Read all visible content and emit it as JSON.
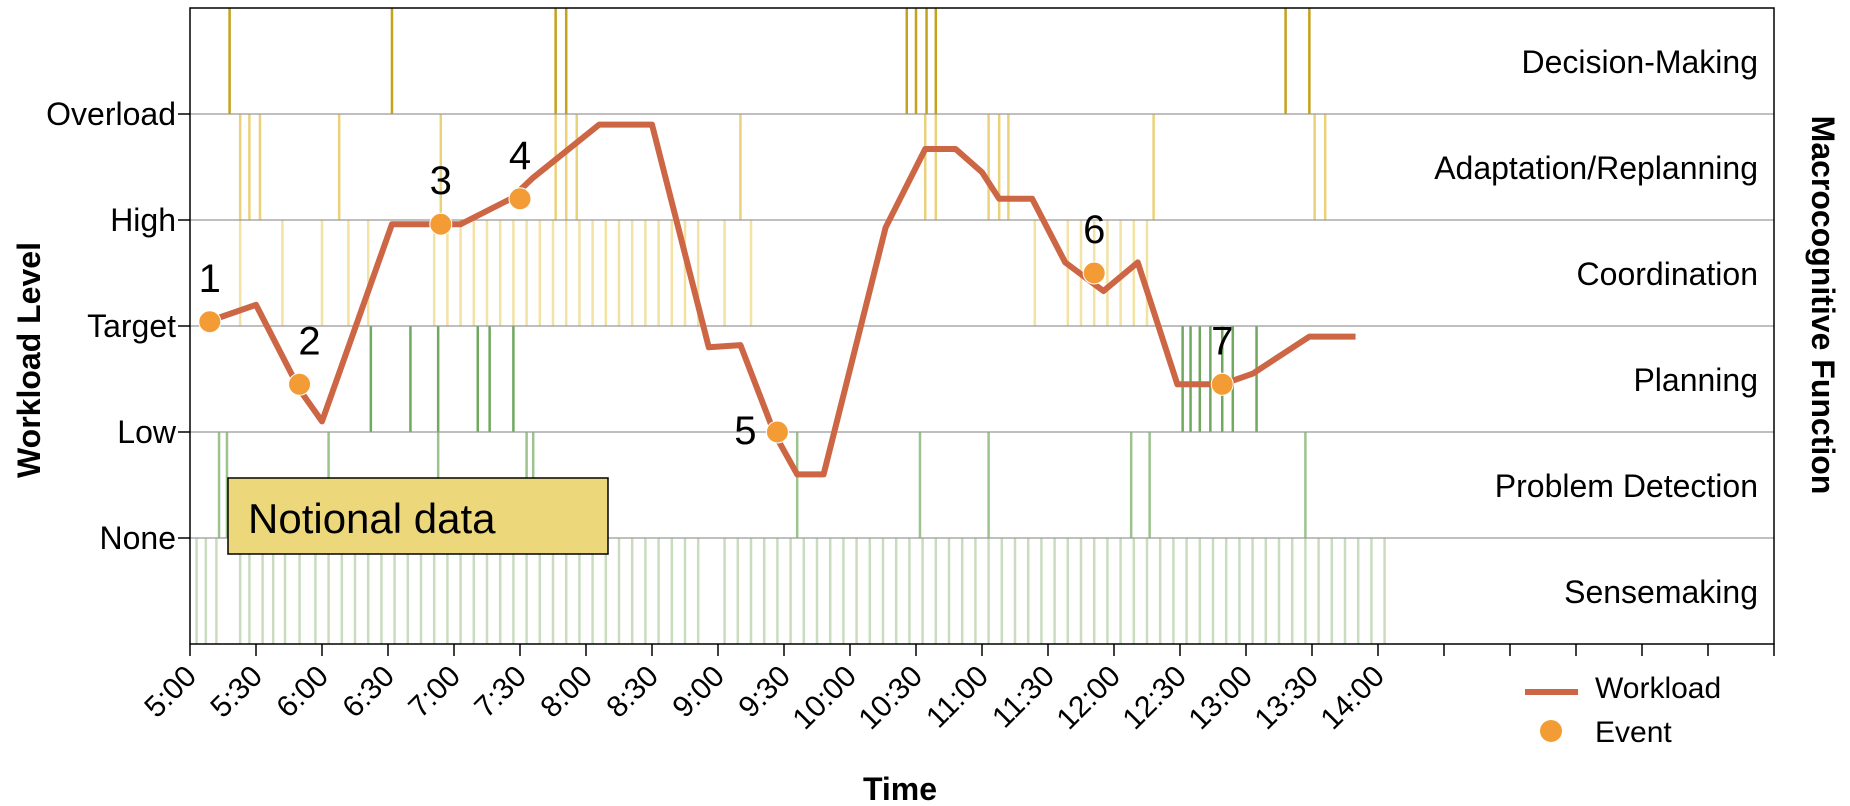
{
  "chart_data": {
    "type": "line",
    "xlabel": "Time",
    "ylabel": "Workload Level",
    "y2label": "Macrocognitive Function",
    "annotation": "Notional data",
    "x_ticks": [
      "5:00",
      "5:30",
      "6:00",
      "6:30",
      "7:00",
      "7:30",
      "8:00",
      "8:30",
      "9:00",
      "9:30",
      "10:00",
      "10:30",
      "11:00",
      "11:30",
      "12:00",
      "12:30",
      "13:00",
      "13:30",
      "14:00"
    ],
    "xlim": [
      5.0,
      17.0
    ],
    "y_ticks": [
      "None",
      "Low",
      "Target",
      "High",
      "Overload"
    ],
    "ylim": [
      -1,
      5
    ],
    "functions": [
      "Sensemaking",
      "Problem Detection",
      "Planning",
      "Coordination",
      "Adaptation/Replanning",
      "Decision-Making"
    ],
    "function_colors": [
      "#c9dcc0",
      "#9cc38e",
      "#6fa85e",
      "#f3e2a4",
      "#ead27a",
      "#c4a21c"
    ],
    "workload": {
      "name": "Workload",
      "color": "#cc6645",
      "points": [
        [
          5.13,
          2.04
        ],
        [
          5.5,
          2.2
        ],
        [
          5.83,
          1.4
        ],
        [
          6.0,
          1.1
        ],
        [
          6.53,
          2.96
        ],
        [
          6.82,
          2.96
        ],
        [
          7.05,
          2.96
        ],
        [
          7.43,
          3.2
        ],
        [
          7.6,
          3.4
        ],
        [
          8.1,
          3.9
        ],
        [
          8.5,
          3.9
        ],
        [
          8.93,
          1.8
        ],
        [
          9.17,
          1.82
        ],
        [
          9.43,
          0.98
        ],
        [
          9.6,
          0.6
        ],
        [
          9.8,
          0.6
        ],
        [
          10.27,
          2.93
        ],
        [
          10.57,
          3.67
        ],
        [
          10.8,
          3.67
        ],
        [
          11.0,
          3.45
        ],
        [
          11.13,
          3.2
        ],
        [
          11.38,
          3.2
        ],
        [
          11.63,
          2.6
        ],
        [
          11.92,
          2.33
        ],
        [
          12.18,
          2.6
        ],
        [
          12.48,
          1.45
        ],
        [
          12.82,
          1.45
        ],
        [
          13.05,
          1.55
        ],
        [
          13.48,
          1.9
        ],
        [
          13.83,
          1.9
        ]
      ]
    },
    "events": {
      "name": "Event",
      "color": "#f39c35",
      "labels": [
        "1",
        "2",
        "3",
        "4",
        "5",
        "6",
        "7"
      ],
      "x": [
        5.15,
        5.83,
        6.9,
        7.5,
        9.45,
        11.85,
        12.82
      ],
      "y": [
        2.04,
        1.45,
        2.96,
        3.2,
        1.0,
        2.5,
        1.45
      ]
    },
    "function_events": {
      "Decision-Making": [
        5.3,
        6.53,
        7.77,
        7.85,
        10.43,
        10.5,
        10.58,
        10.65,
        13.3,
        13.48
      ],
      "Adaptation/Replanning": [
        5.38,
        5.45,
        5.53,
        6.13,
        6.9,
        7.77,
        7.85,
        7.93,
        9.17,
        10.57,
        10.65,
        11.05,
        11.13,
        11.2,
        12.3,
        13.52,
        13.6
      ],
      "Coordination": [
        5.38,
        5.7,
        6.0,
        6.2,
        6.35,
        6.85,
        6.95,
        7.05,
        7.15,
        7.25,
        7.35,
        7.45,
        7.55,
        7.65,
        7.75,
        7.85,
        7.95,
        8.05,
        8.15,
        8.25,
        8.35,
        8.45,
        8.55,
        8.65,
        8.75,
        8.85,
        9.05,
        9.25,
        11.4,
        11.65,
        11.75,
        11.85,
        11.95,
        12.05,
        12.15,
        12.25
      ],
      "Planning": [
        6.37,
        6.67,
        6.88,
        7.18,
        7.27,
        7.45,
        12.52,
        12.58,
        12.65,
        12.73,
        12.82,
        12.9,
        13.08
      ],
      "Problem Detection": [
        5.22,
        5.28,
        6.05,
        6.88,
        7.55,
        7.6,
        9.6,
        10.53,
        11.05,
        12.13,
        12.27,
        13.45
      ],
      "Sensemaking": [
        5.05,
        5.12,
        5.2,
        5.38,
        5.45,
        5.55,
        5.63,
        5.72,
        5.83,
        5.95,
        6.05,
        6.15,
        6.25,
        6.35,
        6.45,
        6.55,
        6.65,
        6.75,
        6.85,
        6.95,
        7.05,
        7.15,
        7.25,
        7.35,
        7.45,
        7.55,
        7.65,
        7.75,
        7.85,
        7.95,
        8.05,
        8.15,
        8.25,
        8.35,
        8.45,
        8.55,
        8.65,
        8.75,
        8.85,
        9.05,
        9.15,
        9.25,
        9.35,
        9.45,
        9.55,
        9.65,
        9.75,
        9.85,
        9.95,
        10.05,
        10.15,
        10.25,
        10.35,
        10.45,
        10.55,
        10.65,
        10.75,
        10.85,
        10.95,
        11.05,
        11.15,
        11.25,
        11.35,
        11.45,
        11.55,
        11.65,
        11.75,
        11.85,
        11.95,
        12.05,
        12.15,
        12.25,
        12.35,
        12.45,
        12.55,
        12.65,
        12.75,
        12.85,
        12.95,
        13.05,
        13.15,
        13.25,
        13.35,
        13.45,
        13.55,
        13.65,
        13.75,
        13.85,
        13.95,
        14.05
      ]
    },
    "legend": [
      "Workload",
      "Event"
    ],
    "legend_position": "bottom-right",
    "grid": true
  }
}
